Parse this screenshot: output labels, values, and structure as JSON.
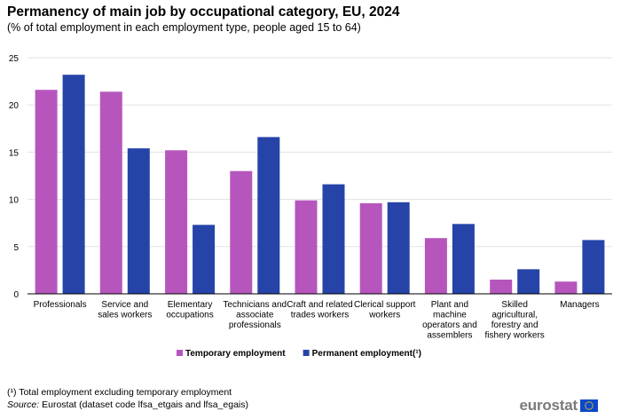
{
  "chart_data": {
    "type": "bar",
    "title": "Permanency of main job by occupational category, EU, 2024",
    "subtitle": "(% of total employment in each employment type, people aged 15 to 64)",
    "categories": [
      [
        "Professionals"
      ],
      [
        "Service and",
        "sales workers"
      ],
      [
        "Elementary",
        "occupations"
      ],
      [
        "Technicians and",
        "associate",
        "professionals"
      ],
      [
        "Craft and related",
        "trades workers"
      ],
      [
        "Clerical support",
        "workers"
      ],
      [
        "Plant and",
        "machine",
        "operators and",
        "assemblers"
      ],
      [
        "Skilled",
        "agricultural,",
        "forestry and",
        "fishery workers"
      ],
      [
        "Managers"
      ]
    ],
    "series": [
      {
        "name": "Temporary employment",
        "color": "#b656bd",
        "values": [
          21.6,
          21.4,
          15.2,
          13.0,
          9.9,
          9.6,
          5.9,
          1.5,
          1.3
        ]
      },
      {
        "name": "Permanent employment(¹)",
        "color": "#2644a7",
        "values": [
          23.2,
          15.4,
          7.3,
          16.6,
          11.6,
          9.7,
          7.4,
          2.6,
          5.7
        ]
      }
    ],
    "ylim": [
      0,
      25
    ],
    "yticks": [
      0,
      5,
      10,
      15,
      20,
      25
    ],
    "grid": true,
    "legend": "bottom-center",
    "xlabel": "",
    "ylabel": ""
  },
  "footnote": "(¹) Total employment excluding temporary employment",
  "source": {
    "label": "Source:",
    "text": " Eurostat (dataset code lfsa_etgais and lfsa_egais)"
  },
  "logo": {
    "text": "eurostat",
    "flag_color": "#0e47cb",
    "star_color": "#ffdd00"
  }
}
